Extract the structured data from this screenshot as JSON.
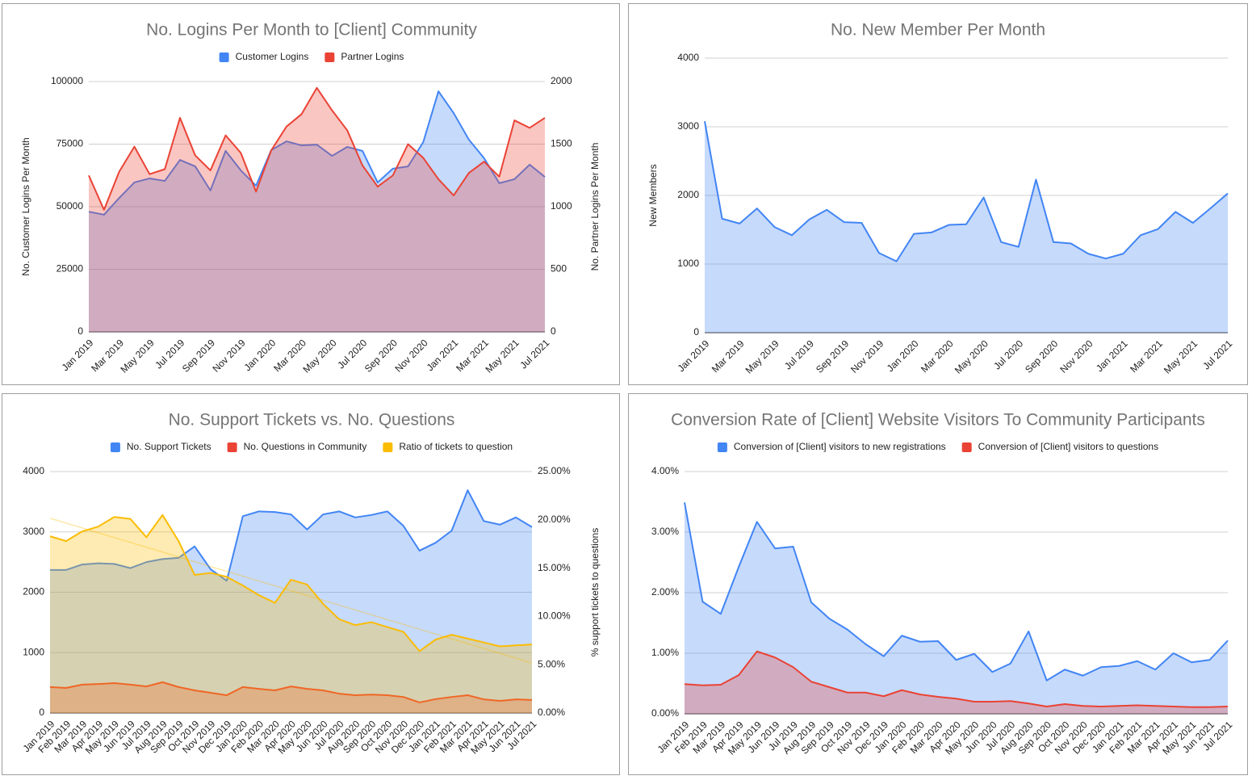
{
  "chart_data": [
    {
      "type": "area",
      "title": "No. Logins Per Month to [Client] Community",
      "legend": "top",
      "ylabel": "No. Customer Logins Per Month",
      "y2label": "No. Partner Logins Per Month",
      "grid": true,
      "categories": [
        "Jan 2019",
        null,
        "Mar 2019",
        null,
        "May 2019",
        null,
        "Jul 2019",
        null,
        "Sep 2019",
        null,
        "Nov 2019",
        null,
        "Jan 2020",
        null,
        "Mar 2020",
        null,
        "May 2020",
        null,
        "Jul 2020",
        null,
        "Sep 2020",
        null,
        "Nov 2020",
        null,
        "Jan 2021",
        null,
        "Mar 2021",
        null,
        "May 2021",
        null,
        "Jul 2021"
      ],
      "ylim": [
        0,
        100000
      ],
      "yticks": [
        0,
        25000,
        50000,
        75000,
        100000
      ],
      "y2lim": [
        0,
        2000
      ],
      "y2ticks": [
        0,
        500,
        1000,
        1500,
        2000
      ],
      "series": [
        {
          "name": "Customer Logins",
          "color": "#4285f4",
          "values": [
            48000,
            46800,
            53500,
            59700,
            61300,
            60300,
            68700,
            66100,
            56500,
            72300,
            64500,
            58400,
            72600,
            76100,
            74500,
            74800,
            70300,
            73900,
            72300,
            59700,
            65200,
            66100,
            75800,
            96100,
            87400,
            76800,
            69400,
            59400,
            61000,
            66800,
            61900
          ]
        },
        {
          "name": "Partner Logins",
          "color": "#ea4335",
          "axis": "y2",
          "values": [
            1250,
            975,
            1280,
            1480,
            1260,
            1300,
            1710,
            1410,
            1290,
            1570,
            1430,
            1120,
            1450,
            1640,
            1740,
            1950,
            1770,
            1610,
            1330,
            1160,
            1250,
            1500,
            1390,
            1220,
            1090,
            1270,
            1360,
            1240,
            1690,
            1630,
            1710
          ]
        }
      ]
    },
    {
      "type": "area",
      "title": "No. New Member Per Month",
      "ylabel": "New Members",
      "grid": true,
      "color": "#4285f4",
      "categories": [
        "Jan 2019",
        null,
        "Mar 2019",
        null,
        "May 2019",
        null,
        "Jul 2019",
        null,
        "Sep 2019",
        null,
        "Nov 2019",
        null,
        "Jan 2020",
        null,
        "Mar 2020",
        null,
        "May 2020",
        null,
        "Jul 2020",
        null,
        "Sep 2020",
        null,
        "Nov 2020",
        null,
        "Jan 2021",
        null,
        "Mar 2021",
        null,
        "May 2021",
        null,
        "Jul 2021"
      ],
      "ylim": [
        0,
        4000
      ],
      "yticks": [
        0,
        1000,
        2000,
        3000,
        4000
      ],
      "values": [
        3080,
        1660,
        1590,
        1810,
        1540,
        1420,
        1650,
        1790,
        1610,
        1600,
        1160,
        1040,
        1440,
        1460,
        1570,
        1580,
        1970,
        1320,
        1250,
        2230,
        1320,
        1300,
        1150,
        1080,
        1150,
        1420,
        1510,
        1760,
        1600,
        1810,
        2030
      ]
    },
    {
      "type": "area",
      "title": "No. Support Tickets vs. No. Questions",
      "legend": "top",
      "y2label": "% support tickets to questions",
      "grid": true,
      "categories": [
        "Jan 2019",
        "Feb 2019",
        "Mar 2019",
        "Apr 2019",
        "May 2019",
        "Jun 2019",
        "Jul 2019",
        "Aug 2019",
        "Sep 2019",
        "Oct 2019",
        "Nov 2019",
        "Dec 2019",
        "Jan 2020",
        "Feb 2020",
        "Mar 2020",
        "Apr 2020",
        "May 2020",
        "Jun 2020",
        "Jul 2020",
        "Aug 2020",
        "Sep 2020",
        "Oct 2020",
        "Nov 2020",
        "Dec 2020",
        "Jan 2021",
        "Feb 2021",
        "Mar 2021",
        "Apr 2021",
        "May 2021",
        "Jun 2021",
        "Jul 2021"
      ],
      "ylim": [
        0,
        4000
      ],
      "yticks": [
        0,
        1000,
        2000,
        3000,
        4000
      ],
      "y2lim": [
        0,
        25
      ],
      "y2ticks": [
        {
          "value": 0,
          "label": "0.00%"
        },
        {
          "value": 5,
          "label": "5.00%"
        },
        {
          "value": 10,
          "label": "10.00%"
        },
        {
          "value": 15,
          "label": "15.00%"
        },
        {
          "value": 20,
          "label": "20.00%"
        },
        {
          "value": 25,
          "label": "25.00%"
        }
      ],
      "series": [
        {
          "name": "No. Support Tickets",
          "color": "#4285f4",
          "values": [
            2370,
            2370,
            2460,
            2480,
            2470,
            2400,
            2500,
            2550,
            2570,
            2760,
            2380,
            2190,
            3260,
            3340,
            3330,
            3290,
            3040,
            3290,
            3340,
            3240,
            3280,
            3340,
            3100,
            2690,
            2820,
            3020,
            3690,
            3180,
            3120,
            3240,
            3080
          ]
        },
        {
          "name": "No. Questions in Community",
          "color": "#ea4335",
          "values": [
            430,
            415,
            470,
            480,
            495,
            470,
            440,
            510,
            430,
            375,
            335,
            295,
            430,
            400,
            375,
            440,
            400,
            375,
            320,
            295,
            305,
            295,
            265,
            175,
            230,
            265,
            295,
            225,
            200,
            225,
            215
          ]
        },
        {
          "name": "Ratio of tickets to question",
          "color": "#fbbc04",
          "axis": "y2",
          "trendline": true,
          "values": [
            18.3,
            17.8,
            18.8,
            19.3,
            20.3,
            20.1,
            18.2,
            20.5,
            17.8,
            14.3,
            14.5,
            14.1,
            13.2,
            12.2,
            11.4,
            13.8,
            13.3,
            11.3,
            9.7,
            9.1,
            9.4,
            8.9,
            8.4,
            6.4,
            7.6,
            8.1,
            7.7,
            7.3,
            6.9,
            7.0,
            7.1
          ]
        }
      ]
    },
    {
      "type": "area",
      "title": "Conversion Rate of [Client] Website Visitors To Community Participants",
      "legend": "top",
      "grid": true,
      "categories": [
        "Jan 2019",
        "Feb 2019",
        "Mar 2019",
        "Apr 2019",
        "May 2019",
        "Jun 2019",
        "Jul 2019",
        "Aug 2019",
        "Sep 2019",
        "Oct 2019",
        "Nov 2019",
        "Dec 2019",
        "Jan 2020",
        "Feb 2020",
        "Mar 2020",
        "Apr 2020",
        "May 2020",
        "Jun 2020",
        "Jul 2020",
        "Aug 2020",
        "Sep 2020",
        "Oct 2020",
        "Nov 2020",
        "Dec 2020",
        "Jan 2021",
        "Feb 2021",
        "Mar 2021",
        "Apr 2021",
        "May 2021",
        "Jun 2021",
        "Jul 2021"
      ],
      "ylim": [
        0,
        4
      ],
      "yticks": [
        {
          "value": 0,
          "label": "0.00%"
        },
        {
          "value": 1,
          "label": "1.00%"
        },
        {
          "value": 2,
          "label": "2.00%"
        },
        {
          "value": 3,
          "label": "3.00%"
        },
        {
          "value": 4,
          "label": "4.00%"
        }
      ],
      "series": [
        {
          "name": "Conversion of [Client] visitors to new registrations",
          "color": "#4285f4",
          "values": [
            3.49,
            1.85,
            1.65,
            2.43,
            3.17,
            2.73,
            2.76,
            1.84,
            1.57,
            1.39,
            1.15,
            0.95,
            1.29,
            1.19,
            1.2,
            0.89,
            0.99,
            0.69,
            0.83,
            1.36,
            0.55,
            0.73,
            0.63,
            0.77,
            0.79,
            0.87,
            0.73,
            1.0,
            0.85,
            0.89,
            1.21
          ]
        },
        {
          "name": "Conversion of [Client] visitors to questions",
          "color": "#ea4335",
          "values": [
            0.49,
            0.47,
            0.48,
            0.64,
            1.03,
            0.93,
            0.77,
            0.53,
            0.44,
            0.35,
            0.35,
            0.29,
            0.39,
            0.32,
            0.28,
            0.25,
            0.2,
            0.2,
            0.21,
            0.17,
            0.12,
            0.16,
            0.13,
            0.12,
            0.13,
            0.14,
            0.13,
            0.12,
            0.11,
            0.11,
            0.12
          ]
        }
      ]
    }
  ]
}
